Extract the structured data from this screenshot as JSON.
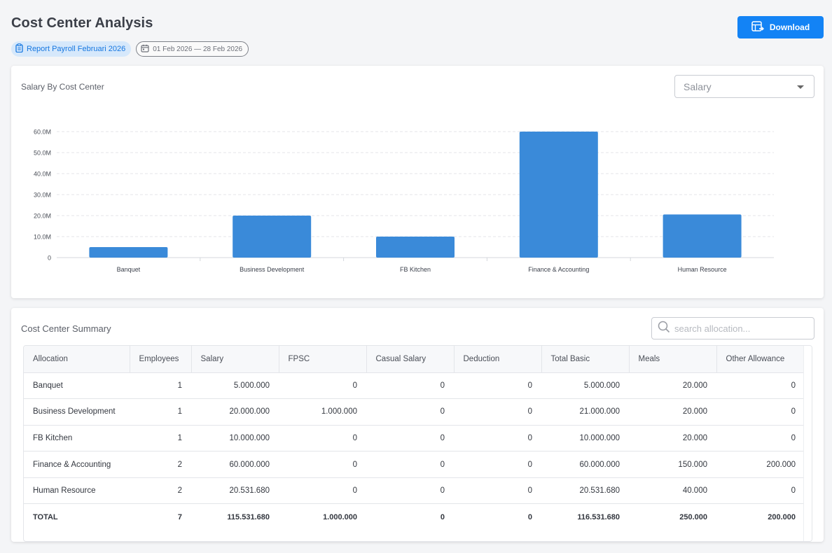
{
  "header": {
    "title": "Cost Center Analysis",
    "report_tag": "Report Payroll Februari 2026",
    "date_range": "01 Feb 2026 — 28 Feb 2026",
    "download_label": "Download"
  },
  "colors": {
    "accent": "#1383f5",
    "bar": "#3a8ad9",
    "tag_bg": "#d6e8fb"
  },
  "chart_card": {
    "title": "Salary By Cost Center",
    "select_value": "Salary"
  },
  "chart_data": {
    "type": "bar",
    "categories": [
      "Banquet",
      "Business Development",
      "FB Kitchen",
      "Finance & Accounting",
      "Human Resource"
    ],
    "values": [
      5000000,
      20000000,
      10000000,
      60000000,
      20531680
    ],
    "y_ticks": [
      "0",
      "10.0M",
      "20.0M",
      "30.0M",
      "40.0M",
      "50.0M",
      "60.0M"
    ],
    "ylim": [
      0,
      60000000
    ],
    "grid": true,
    "legend": "none"
  },
  "table_card": {
    "title": "Cost Center Summary",
    "search_placeholder": "search allocation...",
    "columns": [
      "Allocation",
      "Employees",
      "Salary",
      "FPSC",
      "Casual Salary",
      "Deduction",
      "Total Basic",
      "Meals",
      "Other Allowance"
    ],
    "rows": [
      [
        "Banquet",
        "1",
        "5.000.000",
        "0",
        "0",
        "0",
        "5.000.000",
        "20.000",
        "0"
      ],
      [
        "Business Development",
        "1",
        "20.000.000",
        "1.000.000",
        "0",
        "0",
        "21.000.000",
        "20.000",
        "0"
      ],
      [
        "FB Kitchen",
        "1",
        "10.000.000",
        "0",
        "0",
        "0",
        "10.000.000",
        "20.000",
        "0"
      ],
      [
        "Finance & Accounting",
        "2",
        "60.000.000",
        "0",
        "0",
        "0",
        "60.000.000",
        "150.000",
        "200.000"
      ],
      [
        "Human Resource",
        "2",
        "20.531.680",
        "0",
        "0",
        "0",
        "20.531.680",
        "40.000",
        "0"
      ]
    ],
    "total": [
      "TOTAL",
      "7",
      "115.531.680",
      "1.000.000",
      "0",
      "0",
      "116.531.680",
      "250.000",
      "200.000"
    ]
  }
}
